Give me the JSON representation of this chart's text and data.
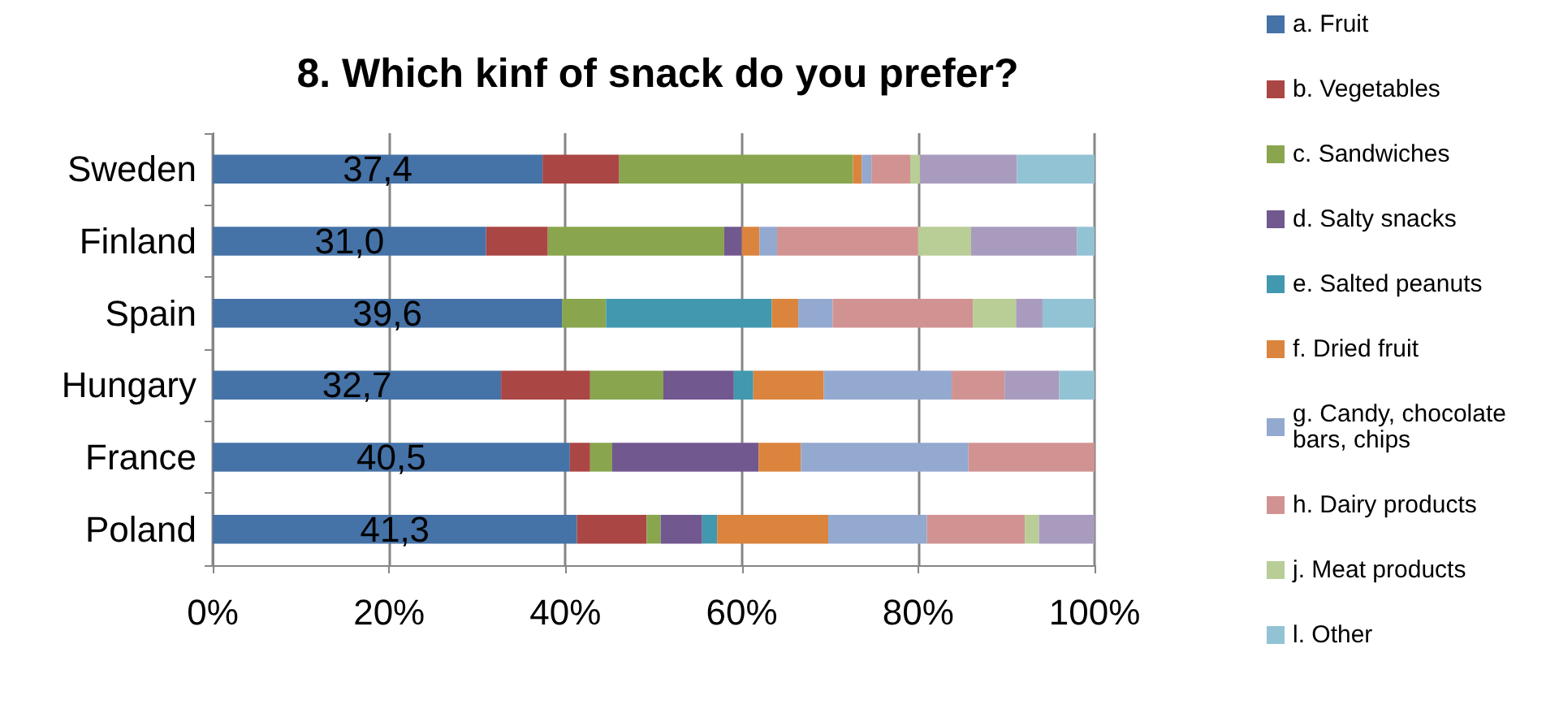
{
  "chart_data": {
    "type": "bar",
    "orientation": "horizontal",
    "stacked": true,
    "title": "8. Which kinf of snack do you prefer?",
    "categories": [
      "Sweden",
      "Finland",
      "Spain",
      "Hungary",
      "France",
      "Poland"
    ],
    "series": [
      {
        "name": "a. Fruit",
        "color": "#4572a7",
        "values": [
          37.4,
          31.0,
          39.6,
          32.7,
          40.5,
          41.3
        ],
        "value_labels": [
          "37,4",
          "31,0",
          "39,6",
          "32,7",
          "40,5",
          "41,3"
        ]
      },
      {
        "name": "b. Vegetables",
        "color": "#aa4643",
        "values": [
          8.7,
          7.0,
          null,
          10.1,
          2.3,
          7.9
        ]
      },
      {
        "name": "c. Sandwiches",
        "color": "#89a54e",
        "values": [
          26.5,
          20.0,
          5.0,
          8.3,
          2.5,
          1.6
        ]
      },
      {
        "name": "d. Salty snacks",
        "color": "#71588f",
        "values": [
          null,
          2.0,
          null,
          8.0,
          16.6,
          4.7
        ]
      },
      {
        "name": "e. Salted peanuts",
        "color": "#4198af",
        "values": [
          null,
          null,
          18.8,
          2.2,
          null,
          1.7
        ]
      },
      {
        "name": "f. Dried fruit",
        "color": "#db843d",
        "values": [
          1.0,
          2.0,
          3.0,
          8.0,
          4.8,
          12.6
        ]
      },
      {
        "name": "g. Candy, chocolate bars, chips",
        "color": "#93a9cf",
        "values": [
          1.1,
          2.0,
          3.9,
          14.5,
          19.0,
          11.2
        ]
      },
      {
        "name": "h. Dairy products",
        "color": "#d19392",
        "values": [
          4.4,
          16.0,
          15.9,
          6.0,
          14.3,
          11.1
        ]
      },
      {
        "name": "j. Meat products",
        "color": "#b9cd96",
        "values": [
          1.1,
          6.0,
          4.9,
          null,
          null,
          1.6
        ]
      },
      {
        "color": "#a99bbd",
        "values": [
          11.0,
          12.0,
          3.0,
          6.2,
          null,
          6.3
        ]
      },
      {
        "name": "l. Other",
        "color": "#92c3d4",
        "values": [
          8.8,
          2.0,
          5.9,
          4.0,
          null,
          null
        ]
      }
    ],
    "xlim": [
      0,
      100
    ],
    "xticks": [
      {
        "value": 0,
        "label": "0%"
      },
      {
        "value": 20,
        "label": "20%"
      },
      {
        "value": 40,
        "label": "40%"
      },
      {
        "value": 60,
        "label": "60%"
      },
      {
        "value": 80,
        "label": "80%"
      },
      {
        "value": 100,
        "label": "100%"
      }
    ],
    "grid": "x",
    "legend": "right"
  }
}
